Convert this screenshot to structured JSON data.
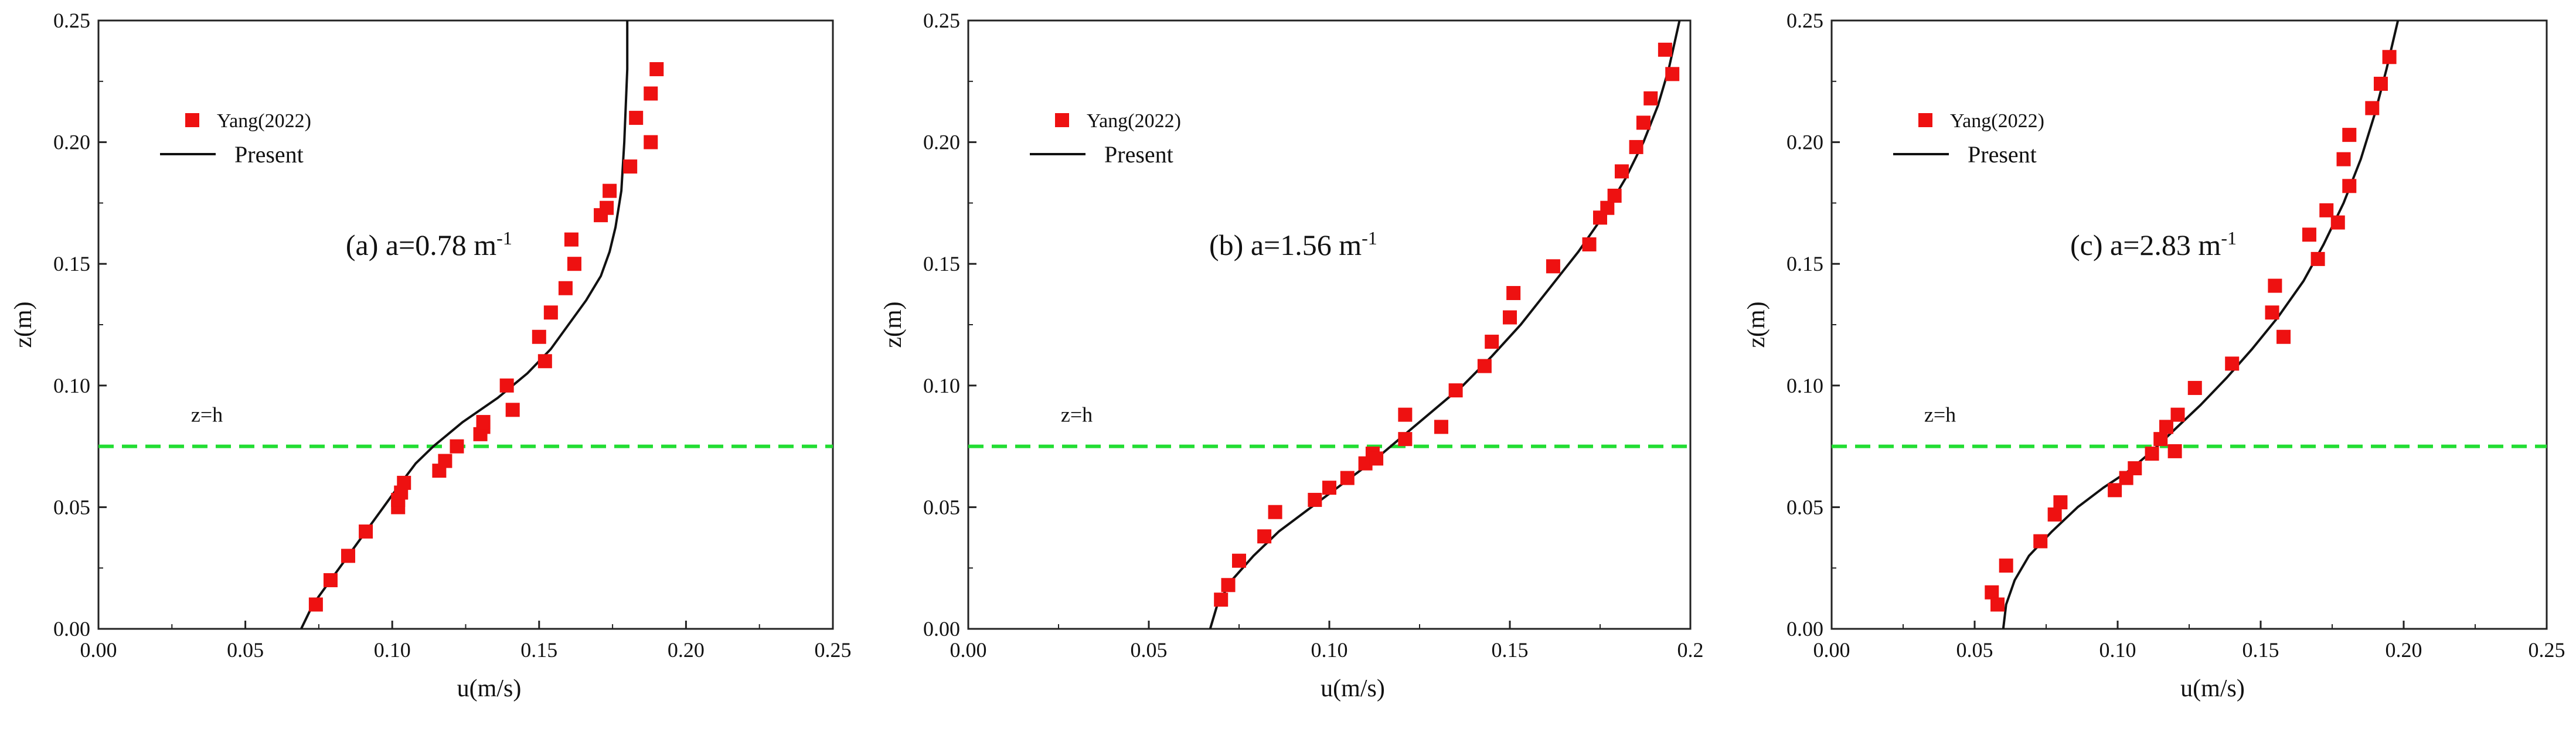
{
  "chart_data": [
    {
      "type": "scatter+line",
      "panel_label": "(a) a=0.78 m",
      "panel_superscript": "-1",
      "xlabel": "u(m/s)",
      "ylabel": "z(m)",
      "xlim": [
        0,
        0.25
      ],
      "ylim": [
        0,
        0.25
      ],
      "xticks": [
        "0.00",
        "0.05",
        "0.10",
        "0.15",
        "0.20",
        "0.25"
      ],
      "yticks": [
        "0.00",
        "0.05",
        "0.10",
        "0.15",
        "0.20",
        "0.25"
      ],
      "hline": {
        "y": 0.075,
        "label": "z=h",
        "color": "#22dd33"
      },
      "legend": {
        "placement": "top-left",
        "scatter_label": "Yang(2022)",
        "line_label": "Present"
      },
      "series": [
        {
          "name": "Yang(2022)",
          "kind": "scatter",
          "color": "#ee1111",
          "points": [
            [
              0.074,
              0.01
            ],
            [
              0.079,
              0.02
            ],
            [
              0.085,
              0.03
            ],
            [
              0.091,
              0.04
            ],
            [
              0.102,
              0.05
            ],
            [
              0.102,
              0.053
            ],
            [
              0.103,
              0.056
            ],
            [
              0.104,
              0.06
            ],
            [
              0.116,
              0.065
            ],
            [
              0.118,
              0.069
            ],
            [
              0.122,
              0.075
            ],
            [
              0.13,
              0.08
            ],
            [
              0.131,
              0.083
            ],
            [
              0.131,
              0.085
            ],
            [
              0.141,
              0.09
            ],
            [
              0.139,
              0.1
            ],
            [
              0.152,
              0.11
            ],
            [
              0.15,
              0.12
            ],
            [
              0.154,
              0.13
            ],
            [
              0.159,
              0.14
            ],
            [
              0.162,
              0.15
            ],
            [
              0.161,
              0.16
            ],
            [
              0.171,
              0.17
            ],
            [
              0.173,
              0.173
            ],
            [
              0.174,
              0.18
            ],
            [
              0.181,
              0.19
            ],
            [
              0.183,
              0.21
            ],
            [
              0.188,
              0.2
            ],
            [
              0.188,
              0.22
            ],
            [
              0.19,
              0.23
            ]
          ]
        },
        {
          "name": "Present",
          "kind": "line",
          "color": "#111111",
          "points": [
            [
              0.069,
              0.0
            ],
            [
              0.073,
              0.01
            ],
            [
              0.079,
              0.02
            ],
            [
              0.085,
              0.03
            ],
            [
              0.091,
              0.04
            ],
            [
              0.097,
              0.05
            ],
            [
              0.103,
              0.06
            ],
            [
              0.108,
              0.068
            ],
            [
              0.114,
              0.075
            ],
            [
              0.124,
              0.085
            ],
            [
              0.136,
              0.095
            ],
            [
              0.146,
              0.105
            ],
            [
              0.154,
              0.115
            ],
            [
              0.16,
              0.125
            ],
            [
              0.166,
              0.135
            ],
            [
              0.171,
              0.145
            ],
            [
              0.174,
              0.155
            ],
            [
              0.176,
              0.165
            ],
            [
              0.178,
              0.18
            ],
            [
              0.179,
              0.2
            ],
            [
              0.18,
              0.23
            ],
            [
              0.18,
              0.25
            ]
          ]
        }
      ]
    },
    {
      "type": "scatter+line",
      "panel_label": "(b) a=1.56 m",
      "panel_superscript": "-1",
      "xlabel": "u(m/s)",
      "ylabel": "z(m)",
      "xlim": [
        0,
        0.2
      ],
      "ylim": [
        0,
        0.25
      ],
      "xticks": [
        "0.00",
        "0.05",
        "0.10",
        "0.15",
        "0.2"
      ],
      "yticks": [
        "0.00",
        "0.05",
        "0.10",
        "0.15",
        "0.20",
        "0.25"
      ],
      "hline": {
        "y": 0.075,
        "label": "z=h",
        "color": "#22dd33"
      },
      "legend": {
        "placement": "top-left",
        "scatter_label": "Yang(2022)",
        "line_label": "Present"
      },
      "series": [
        {
          "name": "Yang(2022)",
          "kind": "scatter",
          "color": "#ee1111",
          "points": [
            [
              0.07,
              0.012
            ],
            [
              0.072,
              0.018
            ],
            [
              0.075,
              0.028
            ],
            [
              0.082,
              0.038
            ],
            [
              0.085,
              0.048
            ],
            [
              0.096,
              0.053
            ],
            [
              0.1,
              0.058
            ],
            [
              0.105,
              0.062
            ],
            [
              0.11,
              0.068
            ],
            [
              0.112,
              0.072
            ],
            [
              0.113,
              0.07
            ],
            [
              0.121,
              0.078
            ],
            [
              0.121,
              0.088
            ],
            [
              0.131,
              0.083
            ],
            [
              0.135,
              0.098
            ],
            [
              0.143,
              0.108
            ],
            [
              0.145,
              0.118
            ],
            [
              0.15,
              0.128
            ],
            [
              0.151,
              0.138
            ],
            [
              0.162,
              0.149
            ],
            [
              0.172,
              0.158
            ],
            [
              0.175,
              0.169
            ],
            [
              0.177,
              0.173
            ],
            [
              0.179,
              0.178
            ],
            [
              0.181,
              0.188
            ],
            [
              0.185,
              0.198
            ],
            [
              0.187,
              0.208
            ],
            [
              0.189,
              0.218
            ],
            [
              0.193,
              0.238
            ],
            [
              0.195,
              0.228
            ]
          ]
        },
        {
          "name": "Present",
          "kind": "line",
          "color": "#111111",
          "points": [
            [
              0.067,
              0.0
            ],
            [
              0.069,
              0.01
            ],
            [
              0.073,
              0.02
            ],
            [
              0.079,
              0.03
            ],
            [
              0.086,
              0.04
            ],
            [
              0.095,
              0.05
            ],
            [
              0.104,
              0.06
            ],
            [
              0.113,
              0.07
            ],
            [
              0.121,
              0.08
            ],
            [
              0.129,
              0.09
            ],
            [
              0.137,
              0.1
            ],
            [
              0.145,
              0.112
            ],
            [
              0.153,
              0.125
            ],
            [
              0.161,
              0.14
            ],
            [
              0.169,
              0.155
            ],
            [
              0.176,
              0.17
            ],
            [
              0.182,
              0.185
            ],
            [
              0.187,
              0.2
            ],
            [
              0.191,
              0.215
            ],
            [
              0.194,
              0.23
            ],
            [
              0.197,
              0.25
            ]
          ]
        }
      ]
    },
    {
      "type": "scatter+line",
      "panel_label": "(c) a=2.83 m",
      "panel_superscript": "-1",
      "xlabel": "u(m/s)",
      "ylabel": "z(m)",
      "xlim": [
        0,
        0.25
      ],
      "ylim": [
        0,
        0.25
      ],
      "xticks": [
        "0.00",
        "0.05",
        "0.10",
        "0.15",
        "0.20",
        "0.25"
      ],
      "yticks": [
        "0.00",
        "0.05",
        "0.10",
        "0.15",
        "0.20",
        "0.25"
      ],
      "hline": {
        "y": 0.075,
        "label": "z=h",
        "color": "#22dd33"
      },
      "legend": {
        "placement": "top-left",
        "scatter_label": "Yang(2022)",
        "line_label": "Present"
      },
      "series": [
        {
          "name": "Yang(2022)",
          "kind": "scatter",
          "color": "#ee1111",
          "points": [
            [
              0.056,
              0.015
            ],
            [
              0.058,
              0.01
            ],
            [
              0.061,
              0.026
            ],
            [
              0.073,
              0.036
            ],
            [
              0.078,
              0.047
            ],
            [
              0.08,
              0.052
            ],
            [
              0.099,
              0.057
            ],
            [
              0.103,
              0.062
            ],
            [
              0.106,
              0.066
            ],
            [
              0.112,
              0.072
            ],
            [
              0.115,
              0.078
            ],
            [
              0.117,
              0.083
            ],
            [
              0.12,
              0.073
            ],
            [
              0.121,
              0.088
            ],
            [
              0.127,
              0.099
            ],
            [
              0.14,
              0.109
            ],
            [
              0.154,
              0.13
            ],
            [
              0.155,
              0.141
            ],
            [
              0.158,
              0.12
            ],
            [
              0.167,
              0.162
            ],
            [
              0.17,
              0.152
            ],
            [
              0.173,
              0.172
            ],
            [
              0.177,
              0.167
            ],
            [
              0.179,
              0.193
            ],
            [
              0.181,
              0.182
            ],
            [
              0.181,
              0.203
            ],
            [
              0.189,
              0.214
            ],
            [
              0.192,
              0.224
            ],
            [
              0.195,
              0.235
            ]
          ]
        },
        {
          "name": "Present",
          "kind": "line",
          "color": "#111111",
          "points": [
            [
              0.06,
              0.0
            ],
            [
              0.061,
              0.01
            ],
            [
              0.064,
              0.02
            ],
            [
              0.069,
              0.03
            ],
            [
              0.077,
              0.04
            ],
            [
              0.086,
              0.05
            ],
            [
              0.095,
              0.058
            ],
            [
              0.104,
              0.065
            ],
            [
              0.112,
              0.073
            ],
            [
              0.12,
              0.082
            ],
            [
              0.129,
              0.092
            ],
            [
              0.138,
              0.103
            ],
            [
              0.147,
              0.115
            ],
            [
              0.156,
              0.128
            ],
            [
              0.165,
              0.143
            ],
            [
              0.172,
              0.158
            ],
            [
              0.179,
              0.175
            ],
            [
              0.185,
              0.193
            ],
            [
              0.19,
              0.212
            ],
            [
              0.194,
              0.23
            ],
            [
              0.198,
              0.25
            ]
          ]
        }
      ]
    }
  ]
}
